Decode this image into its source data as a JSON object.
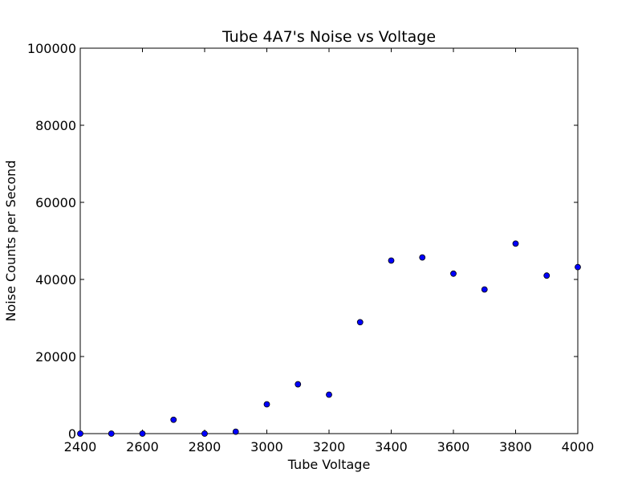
{
  "chart_data": {
    "type": "scatter",
    "title": "Tube 4A7's Noise vs Voltage",
    "xlabel": "Tube Voltage",
    "ylabel": "Noise Counts per Second",
    "xlim": [
      2400,
      4000
    ],
    "ylim": [
      0,
      100000
    ],
    "xticks": [
      2400,
      2600,
      2800,
      3000,
      3200,
      3400,
      3600,
      3800,
      4000
    ],
    "yticks": [
      0,
      20000,
      40000,
      60000,
      80000,
      100000
    ],
    "grid": false,
    "marker_color": "#0000ff",
    "marker_edge_color": "#000000",
    "series": [
      {
        "x": [
          2400,
          2500,
          2600,
          2700,
          2800,
          2900,
          3000,
          3100,
          3200,
          3300,
          3400,
          3500,
          3600,
          3700,
          3800,
          3900,
          4000
        ],
        "y": [
          0,
          0,
          0,
          3600,
          0,
          500,
          7600,
          12800,
          10100,
          28900,
          44900,
          45700,
          41500,
          37400,
          49300,
          41000,
          43200
        ]
      }
    ]
  }
}
